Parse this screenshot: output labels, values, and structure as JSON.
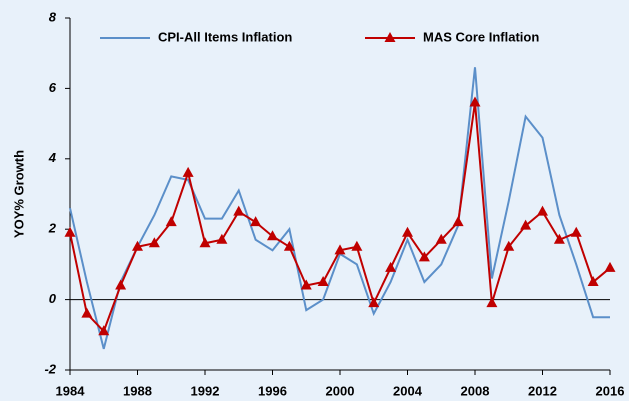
{
  "chart_data": {
    "type": "line",
    "y_label": "YOY% Growth",
    "x": [
      1984,
      1985,
      1986,
      1987,
      1988,
      1989,
      1990,
      1991,
      1992,
      1993,
      1994,
      1995,
      1996,
      1997,
      1998,
      1999,
      2000,
      2001,
      2002,
      2003,
      2004,
      2005,
      2006,
      2007,
      2008,
      2009,
      2010,
      2011,
      2012,
      2013,
      2014,
      2015,
      2016
    ],
    "series": [
      {
        "name": "CPI-All Items Inflation",
        "color": "#5b8fc9",
        "marker": "none",
        "values": [
          2.6,
          0.5,
          -1.4,
          0.5,
          1.5,
          2.4,
          3.5,
          3.4,
          2.3,
          2.3,
          3.1,
          1.7,
          1.4,
          2.0,
          -0.3,
          0.0,
          1.3,
          1.0,
          -0.4,
          0.5,
          1.7,
          0.5,
          1.0,
          2.1,
          6.6,
          0.6,
          2.8,
          5.2,
          4.6,
          2.4,
          1.0,
          -0.5,
          -0.5
        ]
      },
      {
        "name": "MAS Core Inflation",
        "color": "#c00000",
        "marker": "triangle",
        "values": [
          1.9,
          -0.4,
          -0.9,
          0.4,
          1.5,
          1.6,
          2.2,
          3.6,
          1.6,
          1.7,
          2.5,
          2.2,
          1.8,
          1.5,
          0.4,
          0.5,
          1.4,
          1.5,
          -0.1,
          0.9,
          1.9,
          1.2,
          1.7,
          2.2,
          5.6,
          -0.1,
          1.5,
          2.1,
          2.5,
          1.7,
          1.9,
          0.5,
          0.9
        ]
      }
    ],
    "xlim": [
      1984,
      2016
    ],
    "xticks": [
      1984,
      1988,
      1992,
      1996,
      2000,
      2004,
      2008,
      2012,
      2016
    ],
    "ylim": [
      -2,
      8
    ],
    "yticks": [
      -2,
      0,
      2,
      4,
      6,
      8
    ],
    "legend": "top"
  }
}
